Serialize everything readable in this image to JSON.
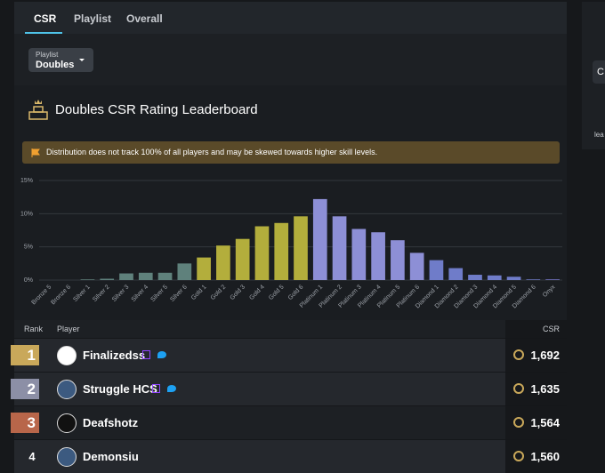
{
  "tabs": [
    "CSR",
    "Playlist",
    "Overall"
  ],
  "playlist_selector": {
    "label": "Playlist",
    "value": "Doubles"
  },
  "header": {
    "title": "Doubles CSR Rating Leaderboard"
  },
  "notice": "Distribution does not track 100% of all players and may be skewed towards higher skill levels.",
  "chart_data": {
    "type": "bar",
    "categories": [
      "Bronze 5",
      "Bronze 6",
      "Silver 1",
      "Silver 2",
      "Silver 3",
      "Silver 4",
      "Silver 5",
      "Silver 6",
      "Gold 1",
      "Gold 2",
      "Gold 3",
      "Gold 4",
      "Gold 5",
      "Gold 6",
      "Platinum 1",
      "Platinum 2",
      "Platinum 3",
      "Platinum 4",
      "Platinum 5",
      "Platinum 6",
      "Diamond 1",
      "Diamond 2",
      "Diamond 3",
      "Diamond 4",
      "Diamond 5",
      "Diamond 6",
      "Onyx"
    ],
    "values": [
      0,
      0,
      0.1,
      0.2,
      1.0,
      1.1,
      1.1,
      2.5,
      3.4,
      5.2,
      6.2,
      8.1,
      8.6,
      9.6,
      12.2,
      9.6,
      7.7,
      7.2,
      6.0,
      4.1,
      3.0,
      1.8,
      0.8,
      0.7,
      0.5,
      0.1,
      0.1
    ],
    "colors": [
      "#9a6b4b",
      "#9a6b4b",
      "#5f817c",
      "#5f817c",
      "#5f817c",
      "#5f817c",
      "#5f817c",
      "#5f817c",
      "#b3ae3c",
      "#b3ae3c",
      "#b3ae3c",
      "#b3ae3c",
      "#b3ae3c",
      "#b3ae3c",
      "#8d8fd6",
      "#8d8fd6",
      "#8d8fd6",
      "#8d8fd6",
      "#8d8fd6",
      "#8d8fd6",
      "#6f7cc9",
      "#6f7cc9",
      "#6f7cc9",
      "#6f7cc9",
      "#6f7cc9",
      "#6f7cc9",
      "#7c7dd4"
    ],
    "ylim": [
      0,
      15
    ],
    "yticks": [
      {
        "value": 0,
        "label": "0%"
      },
      {
        "value": 5,
        "label": "5%"
      },
      {
        "value": 10,
        "label": "10%"
      },
      {
        "value": 15,
        "label": "15%"
      }
    ],
    "grid": true
  },
  "table": {
    "columns": [
      "Rank",
      "Player",
      "CSR"
    ],
    "rows": [
      {
        "rank": 1,
        "player": "Finalizedss",
        "csr": "1,692"
      },
      {
        "rank": 2,
        "player": "Struggle HCS",
        "csr": "1,635"
      },
      {
        "rank": 3,
        "player": "Deafshotz",
        "csr": "1,564"
      },
      {
        "rank": 4,
        "player": "Demonsiu",
        "csr": "1,560"
      }
    ]
  },
  "sidebar": {
    "button": "C",
    "text": "lea"
  }
}
